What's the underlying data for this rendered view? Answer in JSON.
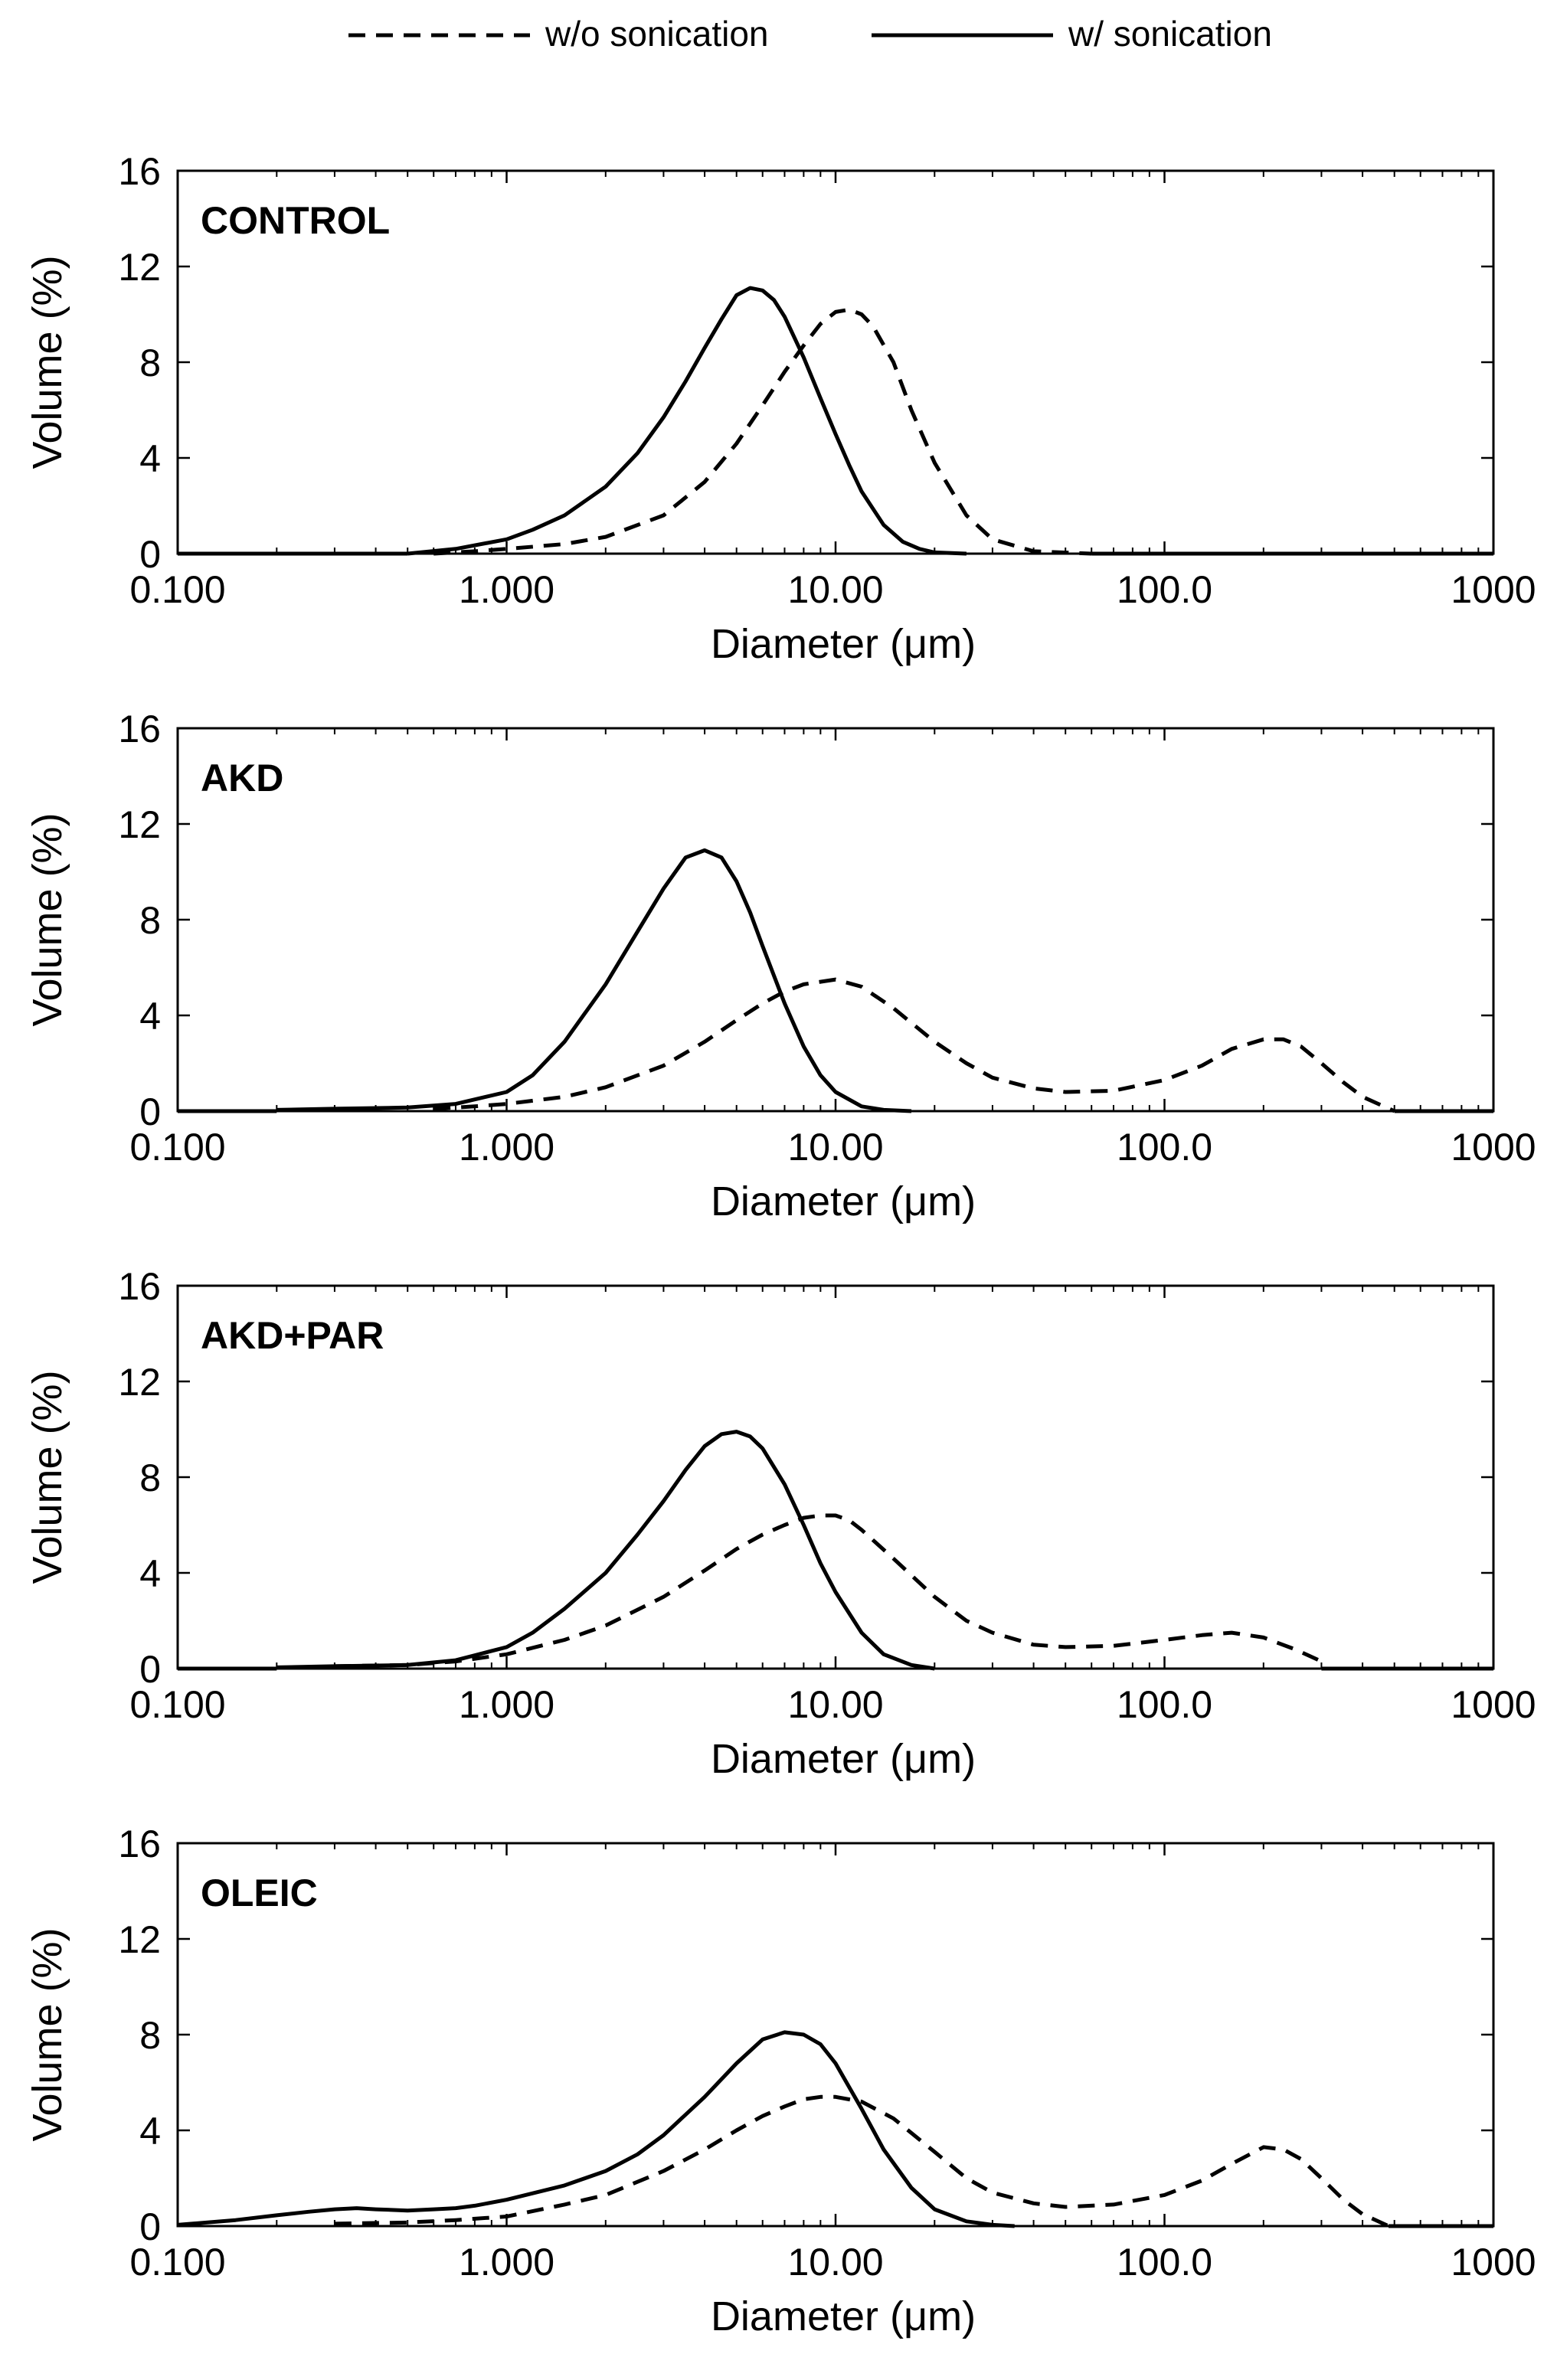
{
  "legend": {
    "entries": [
      {
        "label": "w/o sonication",
        "style": "dashed"
      },
      {
        "label": "w/ sonication",
        "style": "solid"
      }
    ]
  },
  "chart_data": [
    {
      "type": "line",
      "title": "CONTROL",
      "xlabel": "Diameter (μm)",
      "ylabel": "Volume (%)",
      "xscale": "log",
      "xlim": [
        0.1,
        1000
      ],
      "ylim": [
        0,
        16
      ],
      "xticklabels": [
        "0.100",
        "1.000",
        "10.00",
        "100.0",
        "1000"
      ],
      "yticklabels": [
        "0",
        "4",
        "8",
        "12",
        "16"
      ],
      "series": [
        {
          "name": "w/o sonication",
          "style": "dashed",
          "x": [
            0.6,
            0.8,
            1.0,
            1.5,
            2.0,
            3.0,
            4.0,
            5.0,
            6.0,
            7.0,
            8.0,
            9.0,
            10.0,
            11.0,
            12.0,
            13.0,
            15.0,
            17.0,
            20.0,
            25.0,
            30.0,
            40.0,
            60.0
          ],
          "y": [
            0,
            0.1,
            0.2,
            0.4,
            0.7,
            1.6,
            3.0,
            4.6,
            6.2,
            7.6,
            8.7,
            9.6,
            10.1,
            10.2,
            10.0,
            9.5,
            8.0,
            6.0,
            3.8,
            1.6,
            0.6,
            0.1,
            0
          ]
        },
        {
          "name": "w/ sonication",
          "style": "solid",
          "x": [
            0.5,
            0.7,
            1.0,
            1.2,
            1.5,
            2.0,
            2.5,
            3.0,
            3.5,
            4.0,
            4.5,
            5.0,
            5.5,
            6.0,
            6.5,
            7.0,
            8.0,
            9.0,
            10.0,
            11.0,
            12.0,
            14.0,
            16.0,
            18.0,
            20.0,
            25.0
          ],
          "y": [
            0,
            0.2,
            0.6,
            1.0,
            1.6,
            2.8,
            4.2,
            5.7,
            7.2,
            8.6,
            9.8,
            10.8,
            11.1,
            11.0,
            10.6,
            9.9,
            8.2,
            6.5,
            5.0,
            3.7,
            2.6,
            1.2,
            0.5,
            0.2,
            0.05,
            0
          ]
        }
      ]
    },
    {
      "type": "line",
      "title": "AKD",
      "xlabel": "Diameter (μm)",
      "ylabel": "Volume (%)",
      "xscale": "log",
      "xlim": [
        0.1,
        1000
      ],
      "ylim": [
        0,
        16
      ],
      "xticklabels": [
        "0.100",
        "1.000",
        "10.00",
        "100.0",
        "1000"
      ],
      "yticklabels": [
        "0",
        "4",
        "8",
        "12",
        "16"
      ],
      "series": [
        {
          "name": "w/o sonication",
          "style": "dashed",
          "x": [
            0.6,
            0.8,
            1.0,
            1.5,
            2.0,
            3.0,
            4.0,
            5.0,
            6.0,
            7.0,
            8.0,
            10.0,
            12.0,
            15.0,
            20.0,
            25.0,
            30.0,
            40.0,
            50.0,
            70.0,
            100.0,
            130.0,
            160.0,
            200.0,
            230.0,
            260.0,
            300.0,
            350.0,
            400.0,
            500.0
          ],
          "y": [
            0.1,
            0.2,
            0.3,
            0.6,
            1.0,
            1.9,
            2.9,
            3.8,
            4.5,
            5.0,
            5.3,
            5.5,
            5.2,
            4.3,
            2.9,
            2.0,
            1.4,
            0.95,
            0.8,
            0.85,
            1.3,
            1.9,
            2.6,
            3.0,
            3.0,
            2.7,
            2.0,
            1.2,
            0.6,
            0
          ]
        },
        {
          "name": "w/ sonication",
          "style": "solid",
          "x": [
            0.2,
            0.3,
            0.5,
            0.7,
            1.0,
            1.2,
            1.5,
            2.0,
            2.5,
            3.0,
            3.5,
            4.0,
            4.5,
            5.0,
            5.5,
            6.0,
            7.0,
            8.0,
            9.0,
            10.0,
            12.0,
            14.0,
            17.0
          ],
          "y": [
            0.05,
            0.1,
            0.15,
            0.3,
            0.8,
            1.5,
            2.9,
            5.3,
            7.5,
            9.3,
            10.6,
            10.9,
            10.6,
            9.6,
            8.3,
            6.9,
            4.5,
            2.7,
            1.5,
            0.8,
            0.2,
            0.05,
            0
          ]
        }
      ]
    },
    {
      "type": "line",
      "title": "AKD+PAR",
      "xlabel": "Diameter (μm)",
      "ylabel": "Volume (%)",
      "xscale": "log",
      "xlim": [
        0.1,
        1000
      ],
      "ylim": [
        0,
        16
      ],
      "xticklabels": [
        "0.100",
        "1.000",
        "10.00",
        "100.0",
        "1000"
      ],
      "yticklabels": [
        "0",
        "4",
        "8",
        "12",
        "16"
      ],
      "series": [
        {
          "name": "w/o sonication",
          "style": "dashed",
          "x": [
            0.3,
            0.5,
            0.7,
            1.0,
            1.5,
            2.0,
            3.0,
            4.0,
            5.0,
            6.0,
            7.0,
            8.0,
            9.0,
            10.0,
            11.0,
            12.0,
            15.0,
            20.0,
            25.0,
            30.0,
            40.0,
            50.0,
            70.0,
            100.0,
            130.0,
            160.0,
            200.0,
            250.0,
            300.0
          ],
          "y": [
            0.1,
            0.15,
            0.3,
            0.6,
            1.2,
            1.8,
            3.0,
            4.1,
            5.0,
            5.6,
            6.0,
            6.3,
            6.4,
            6.4,
            6.2,
            5.8,
            4.6,
            3.0,
            2.0,
            1.5,
            1.0,
            0.9,
            0.95,
            1.2,
            1.4,
            1.5,
            1.3,
            0.8,
            0.3
          ]
        },
        {
          "name": "w/ sonication",
          "style": "solid",
          "x": [
            0.2,
            0.3,
            0.5,
            0.7,
            1.0,
            1.2,
            1.5,
            2.0,
            2.5,
            3.0,
            3.5,
            4.0,
            4.5,
            5.0,
            5.5,
            6.0,
            7.0,
            8.0,
            9.0,
            10.0,
            12.0,
            14.0,
            17.0,
            20.0
          ],
          "y": [
            0.05,
            0.1,
            0.15,
            0.35,
            0.9,
            1.5,
            2.5,
            4.0,
            5.6,
            7.0,
            8.3,
            9.3,
            9.8,
            9.9,
            9.7,
            9.2,
            7.7,
            6.0,
            4.4,
            3.2,
            1.5,
            0.6,
            0.15,
            0
          ]
        }
      ]
    },
    {
      "type": "line",
      "title": "OLEIC",
      "xlabel": "Diameter (μm)",
      "ylabel": "Volume (%)",
      "xscale": "log",
      "xlim": [
        0.1,
        1000
      ],
      "ylim": [
        0,
        16
      ],
      "xticklabels": [
        "0.100",
        "1.000",
        "10.00",
        "100.0",
        "1000"
      ],
      "yticklabels": [
        "0",
        "4",
        "8",
        "12",
        "16"
      ],
      "series": [
        {
          "name": "w/o sonication",
          "style": "dashed",
          "x": [
            0.3,
            0.5,
            0.7,
            1.0,
            1.5,
            2.0,
            3.0,
            4.0,
            5.0,
            6.0,
            7.0,
            8.0,
            9.0,
            10.0,
            12.0,
            15.0,
            20.0,
            25.0,
            30.0,
            40.0,
            50.0,
            70.0,
            100.0,
            130.0,
            160.0,
            200.0,
            230.0,
            260.0,
            300.0,
            350.0,
            400.0,
            480.0
          ],
          "y": [
            0.1,
            0.15,
            0.25,
            0.4,
            0.9,
            1.3,
            2.3,
            3.2,
            4.0,
            4.6,
            5.0,
            5.3,
            5.4,
            5.4,
            5.2,
            4.5,
            3.1,
            2.0,
            1.4,
            0.95,
            0.8,
            0.9,
            1.3,
            1.9,
            2.6,
            3.3,
            3.2,
            2.8,
            2.0,
            1.1,
            0.5,
            0
          ]
        },
        {
          "name": "w/ sonication",
          "style": "solid",
          "x": [
            0.1,
            0.15,
            0.2,
            0.25,
            0.3,
            0.35,
            0.4,
            0.5,
            0.6,
            0.7,
            0.8,
            1.0,
            1.5,
            2.0,
            2.5,
            3.0,
            4.0,
            5.0,
            6.0,
            7.0,
            8.0,
            9.0,
            10.0,
            12.0,
            14.0,
            17.0,
            20.0,
            25.0,
            30.0,
            35.0
          ],
          "y": [
            0.05,
            0.25,
            0.45,
            0.6,
            0.7,
            0.75,
            0.7,
            0.65,
            0.7,
            0.75,
            0.85,
            1.1,
            1.7,
            2.3,
            3.0,
            3.8,
            5.4,
            6.8,
            7.8,
            8.1,
            8.0,
            7.6,
            6.8,
            4.9,
            3.2,
            1.6,
            0.7,
            0.2,
            0.05,
            0
          ]
        }
      ]
    }
  ]
}
